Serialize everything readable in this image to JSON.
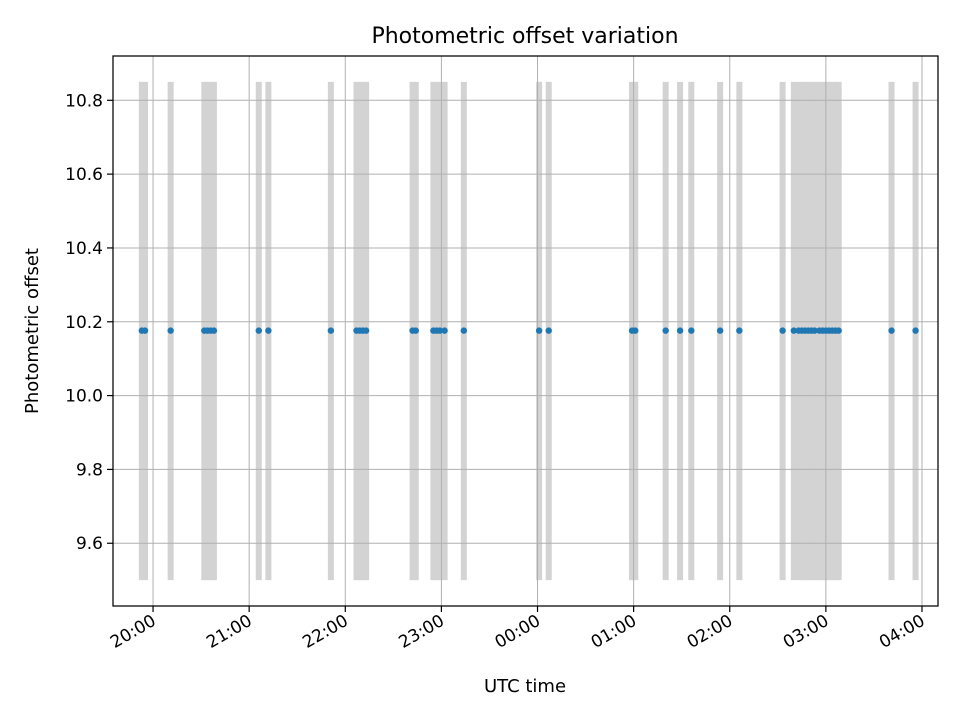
{
  "chart_data": {
    "type": "scatter",
    "title": "Photometric offset variation",
    "xlabel": "UTC time",
    "ylabel": "Photometric offset",
    "x_is_time": true,
    "x_tick_labels": [
      "20:00",
      "21:00",
      "22:00",
      "23:00",
      "00:00",
      "01:00",
      "02:00",
      "03:00",
      "04:00"
    ],
    "y_tick_labels": [
      "9.6",
      "9.8",
      "10.0",
      "10.2",
      "10.4",
      "10.6",
      "10.8"
    ],
    "xlim": [
      "19:35",
      "04:10"
    ],
    "ylim": [
      9.43,
      10.92
    ],
    "grid": true,
    "colors": {
      "points": "#1f77b4",
      "bands": "#d3d3d3",
      "grid": "#b0b0b0"
    },
    "band_range": [
      9.5,
      10.85
    ],
    "bands": [
      "19:53",
      "19:55",
      "20:11",
      "20:32",
      "20:34",
      "20:36",
      "20:38",
      "21:06",
      "21:12",
      "21:51",
      "22:07",
      "22:09",
      "22:11",
      "22:13",
      "22:42",
      "22:44",
      "22:55",
      "22:57",
      "22:59",
      "23:02",
      "23:14",
      "00:01",
      "00:07",
      "00:59",
      "01:01",
      "01:20",
      "01:29",
      "01:36",
      "01:54",
      "02:06",
      "02:33",
      "02:40",
      "02:43",
      "02:45",
      "02:47",
      "02:49",
      "02:51",
      "02:53",
      "02:56",
      "02:58",
      "03:00",
      "03:02",
      "03:04",
      "03:06",
      "03:08",
      "03:41",
      "03:56"
    ],
    "series": [
      {
        "points": [
          {
            "x": "19:53",
            "y": 10.176
          },
          {
            "x": "19:55",
            "y": 10.176
          },
          {
            "x": "20:11",
            "y": 10.176
          },
          {
            "x": "20:32",
            "y": 10.176
          },
          {
            "x": "20:34",
            "y": 10.176
          },
          {
            "x": "20:36",
            "y": 10.176
          },
          {
            "x": "20:38",
            "y": 10.176
          },
          {
            "x": "21:06",
            "y": 10.176
          },
          {
            "x": "21:12",
            "y": 10.176
          },
          {
            "x": "21:51",
            "y": 10.176
          },
          {
            "x": "22:07",
            "y": 10.176
          },
          {
            "x": "22:09",
            "y": 10.176
          },
          {
            "x": "22:11",
            "y": 10.176
          },
          {
            "x": "22:13",
            "y": 10.176
          },
          {
            "x": "22:42",
            "y": 10.176
          },
          {
            "x": "22:44",
            "y": 10.176
          },
          {
            "x": "22:55",
            "y": 10.176
          },
          {
            "x": "22:57",
            "y": 10.176
          },
          {
            "x": "22:59",
            "y": 10.176
          },
          {
            "x": "23:02",
            "y": 10.176
          },
          {
            "x": "23:14",
            "y": 10.176
          },
          {
            "x": "00:01",
            "y": 10.176
          },
          {
            "x": "00:07",
            "y": 10.176
          },
          {
            "x": "00:59",
            "y": 10.176
          },
          {
            "x": "01:01",
            "y": 10.176
          },
          {
            "x": "01:20",
            "y": 10.176
          },
          {
            "x": "01:29",
            "y": 10.176
          },
          {
            "x": "01:36",
            "y": 10.176
          },
          {
            "x": "01:54",
            "y": 10.176
          },
          {
            "x": "02:06",
            "y": 10.176
          },
          {
            "x": "02:33",
            "y": 10.176
          },
          {
            "x": "02:40",
            "y": 10.176
          },
          {
            "x": "02:43",
            "y": 10.176
          },
          {
            "x": "02:45",
            "y": 10.176
          },
          {
            "x": "02:47",
            "y": 10.176
          },
          {
            "x": "02:49",
            "y": 10.176
          },
          {
            "x": "02:51",
            "y": 10.176
          },
          {
            "x": "02:53",
            "y": 10.176
          },
          {
            "x": "02:56",
            "y": 10.176
          },
          {
            "x": "02:58",
            "y": 10.176
          },
          {
            "x": "03:00",
            "y": 10.176
          },
          {
            "x": "03:02",
            "y": 10.176
          },
          {
            "x": "03:04",
            "y": 10.176
          },
          {
            "x": "03:06",
            "y": 10.176
          },
          {
            "x": "03:08",
            "y": 10.176
          },
          {
            "x": "03:41",
            "y": 10.176
          },
          {
            "x": "03:56",
            "y": 10.176
          }
        ]
      }
    ]
  }
}
